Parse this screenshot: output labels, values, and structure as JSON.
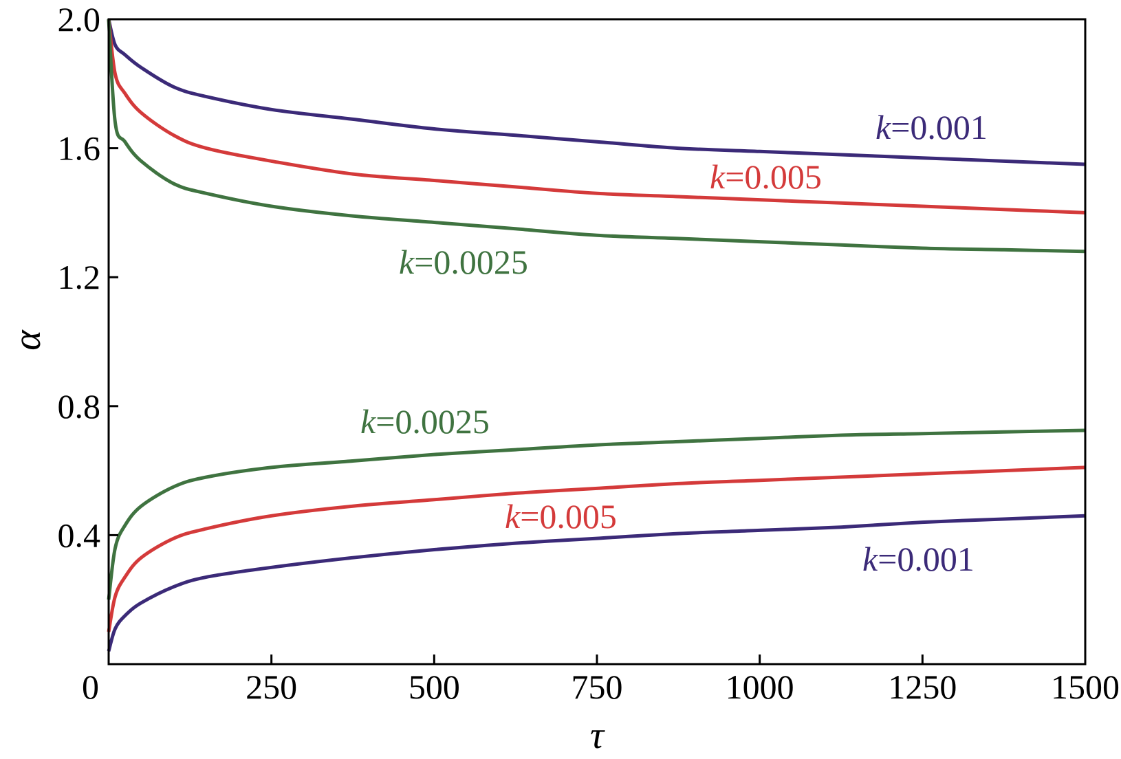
{
  "chart_data": {
    "type": "line",
    "title": "",
    "xlabel": "τ",
    "ylabel": "α",
    "xlim": [
      0,
      1500
    ],
    "ylim": [
      0,
      2.0
    ],
    "grid": false,
    "x_ticks": [
      0,
      250,
      500,
      750,
      1000,
      1250,
      1500
    ],
    "x_tick_labels": [
      "0",
      "250",
      "500",
      "750",
      "1000",
      "1250",
      "1500"
    ],
    "y_ticks": [
      0.4,
      0.8,
      1.2,
      1.6,
      2.0
    ],
    "y_tick_labels": [
      "0.4",
      "0.8",
      "1.2",
      "1.6",
      "2.0"
    ],
    "x": [
      0,
      10,
      25,
      50,
      100,
      150,
      250,
      375,
      500,
      625,
      750,
      875,
      1000,
      1125,
      1250,
      1375,
      1500
    ],
    "series": [
      {
        "name": "upper k=0.001",
        "k_text": "k",
        "value_text": "=0.001",
        "color": "#3b2a78",
        "values": [
          2.0,
          1.92,
          1.89,
          1.85,
          1.79,
          1.76,
          1.72,
          1.69,
          1.66,
          1.64,
          1.62,
          1.6,
          1.59,
          1.58,
          1.57,
          1.56,
          1.55
        ]
      },
      {
        "name": "upper k=0.005",
        "k_text": "k",
        "value_text": "=0.005",
        "color": "#d43a3a",
        "values": [
          2.0,
          1.83,
          1.77,
          1.71,
          1.64,
          1.6,
          1.56,
          1.52,
          1.5,
          1.48,
          1.46,
          1.45,
          1.44,
          1.43,
          1.42,
          1.41,
          1.4
        ]
      },
      {
        "name": "upper k=0.0025",
        "k_text": "k",
        "value_text": "=0.0025",
        "color": "#3f7340",
        "values": [
          2.0,
          1.68,
          1.62,
          1.56,
          1.49,
          1.46,
          1.42,
          1.39,
          1.37,
          1.35,
          1.33,
          1.32,
          1.31,
          1.3,
          1.29,
          1.285,
          1.28
        ]
      },
      {
        "name": "lower k=0.0025",
        "k_text": "k",
        "value_text": "=0.0025",
        "color": "#3f7340",
        "values": [
          0.2,
          0.36,
          0.43,
          0.49,
          0.55,
          0.58,
          0.61,
          0.63,
          0.65,
          0.665,
          0.68,
          0.69,
          0.7,
          0.71,
          0.715,
          0.72,
          0.725
        ]
      },
      {
        "name": "lower k=0.005",
        "k_text": "k",
        "value_text": "=0.005",
        "color": "#d43a3a",
        "values": [
          0.1,
          0.21,
          0.27,
          0.33,
          0.39,
          0.42,
          0.46,
          0.49,
          0.51,
          0.53,
          0.545,
          0.56,
          0.57,
          0.58,
          0.59,
          0.6,
          0.61
        ]
      },
      {
        "name": "lower k=0.001",
        "k_text": "k",
        "value_text": "=0.001",
        "color": "#3b2a78",
        "values": [
          0.04,
          0.11,
          0.15,
          0.19,
          0.24,
          0.27,
          0.3,
          0.33,
          0.355,
          0.375,
          0.39,
          0.405,
          0.415,
          0.425,
          0.44,
          0.45,
          0.46
        ]
      }
    ]
  }
}
